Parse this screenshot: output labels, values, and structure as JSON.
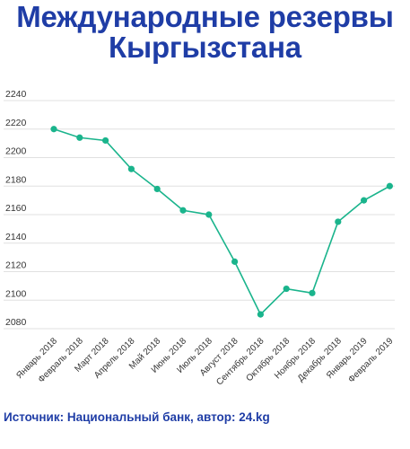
{
  "title_lines": [
    "Международные резервы",
    "Кыргызстана"
  ],
  "source_text": "Источник: Национальный банк, автор: 24.kg",
  "colors": {
    "title": "#1f3da6",
    "line": "#1ab48c",
    "grid": "#e0e0e0",
    "axis_text": "#333333"
  },
  "chart_data": {
    "type": "line",
    "title": "Международные резервы Кыргызстана",
    "xlabel": "",
    "ylabel": "",
    "ylim": [
      2080,
      2240
    ],
    "yticks": [
      2080,
      2100,
      2120,
      2140,
      2160,
      2180,
      2200,
      2220,
      2240
    ],
    "grid": true,
    "categories": [
      "Январь 2018",
      "Февраль 2018",
      "Март 2018",
      "Апрель 2018",
      "Май 2018",
      "Июнь 2018",
      "Июль 2018",
      "Август 2018",
      "Сентябрь 2018",
      "Октябрь 2018",
      "Ноябрь 2018",
      "Декабрь 2018",
      "Январь 2019",
      "Февраль 2019"
    ],
    "series": [
      {
        "values": [
          2220,
          2214,
          2212,
          2192,
          2178,
          2163,
          2160,
          2127,
          2090,
          2108,
          2105,
          2155,
          2170,
          2180
        ]
      }
    ]
  }
}
